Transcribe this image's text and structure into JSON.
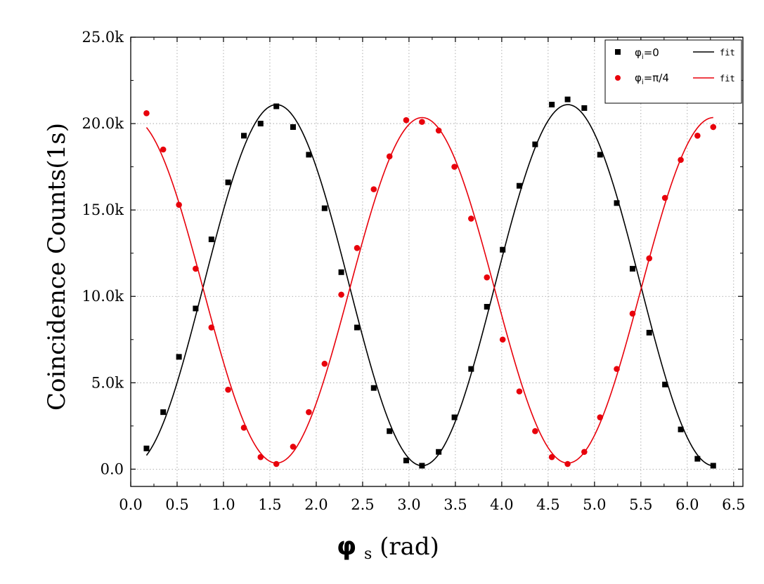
{
  "chart_data": {
    "type": "scatter",
    "xlabel": {
      "main": "φ",
      "sub": "s",
      "unit": "(rad)"
    },
    "ylabel": "Coincidence Counts(1s)",
    "xlim": [
      0.0,
      6.6
    ],
    "ylim": [
      -1000,
      25000
    ],
    "x_ticks": [
      0.0,
      0.5,
      1.0,
      1.5,
      2.0,
      2.5,
      3.0,
      3.5,
      4.0,
      4.5,
      5.0,
      5.5,
      6.0,
      6.5
    ],
    "x_tick_labels": [
      "0.0",
      "0.5",
      "1.0",
      "1.5",
      "2.0",
      "2.5",
      "3.0",
      "3.5",
      "4.0",
      "4.5",
      "5.0",
      "5.5",
      "6.0",
      "6.5"
    ],
    "y_ticks": [
      0,
      5000,
      10000,
      15000,
      20000,
      25000
    ],
    "y_tick_labels": [
      "0.0",
      "5.0k",
      "10.0k",
      "15.0k",
      "20.0k",
      "25.0k"
    ],
    "grid": true,
    "legend_position": "top-right",
    "legend": {
      "series_a": {
        "main": "φ",
        "sub": "i",
        "suffix": "=0",
        "fit": "fit"
      },
      "series_b": {
        "main": "φ",
        "sub": "i",
        "suffix": "=π/4",
        "fit": "fit"
      }
    },
    "series": [
      {
        "marker": "square",
        "color": "#000000",
        "x": [
          0.17,
          0.35,
          0.52,
          0.7,
          0.87,
          1.05,
          1.22,
          1.4,
          1.57,
          1.75,
          1.92,
          2.09,
          2.27,
          2.44,
          2.62,
          2.79,
          2.97,
          3.14,
          3.32,
          3.49,
          3.67,
          3.84,
          4.01,
          4.19,
          4.36,
          4.54,
          4.71,
          4.89,
          5.06,
          5.24,
          5.41,
          5.59,
          5.76,
          5.93,
          6.11,
          6.28
        ],
        "y": [
          1200,
          3300,
          6500,
          9300,
          13300,
          16600,
          19300,
          20000,
          21000,
          19800,
          18200,
          15100,
          11400,
          8200,
          4700,
          2200,
          500,
          200,
          1000,
          3000,
          5800,
          9400,
          12700,
          16400,
          18800,
          21100,
          21400,
          20900,
          18200,
          15400,
          11600,
          7900,
          4900,
          2300,
          600,
          200
        ],
        "fit": {
          "model": "A·sin²(x) + c",
          "A": 20900,
          "c": 200
        }
      },
      {
        "marker": "circle",
        "color": "#e8000b",
        "x": [
          0.17,
          0.35,
          0.52,
          0.7,
          0.87,
          1.05,
          1.22,
          1.4,
          1.57,
          1.75,
          1.92,
          2.09,
          2.27,
          2.44,
          2.62,
          2.79,
          2.97,
          3.14,
          3.32,
          3.49,
          3.67,
          3.84,
          4.01,
          4.19,
          4.36,
          4.54,
          4.71,
          4.89,
          5.06,
          5.24,
          5.41,
          5.59,
          5.76,
          5.93,
          6.11,
          6.28
        ],
        "y": [
          20600,
          18500,
          15300,
          11600,
          8200,
          4600,
          2400,
          700,
          300,
          1300,
          3300,
          6100,
          10100,
          12800,
          16200,
          18100,
          20200,
          20100,
          19600,
          17500,
          14500,
          11100,
          7500,
          4500,
          2200,
          700,
          300,
          1000,
          3000,
          5800,
          9000,
          12200,
          15700,
          17900,
          19300,
          19800
        ],
        "fit": {
          "model": "A·cos²(x) + c",
          "A": 20000,
          "c": 350
        }
      }
    ]
  }
}
